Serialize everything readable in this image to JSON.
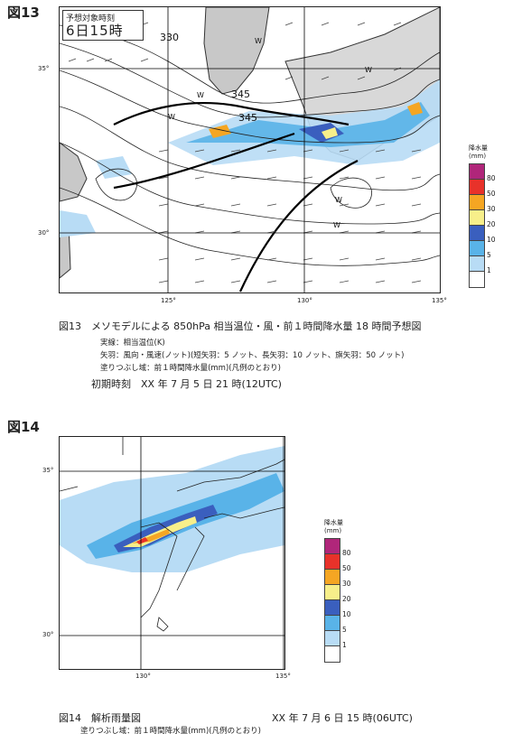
{
  "fig13": {
    "label": "図13",
    "valid_time_label": "予想対象時刻",
    "valid_time": "6日15時",
    "contour_labels": [
      "330",
      "345",
      "345"
    ],
    "wind_marks": [
      "W",
      "W",
      "W",
      "W",
      "W",
      "W"
    ],
    "lat_labels": [
      "35°",
      "30°"
    ],
    "lon_labels": [
      "125°",
      "130°",
      "135°"
    ],
    "caption": "図13　メソモデルによる 850hPa 相当温位・風・前１時間降水量 18 時間予想図",
    "notes": [
      "実線：相当温位(K)",
      "矢羽：風向・風速(ノット)(短矢羽：5 ノット、長矢羽：10 ノット、旗矢羽：50 ノット)",
      "塗りつぶし域：前１時間降水量(mm)(凡例のとおり)"
    ],
    "init_time": "初期時刻　XX 年 7 月 5 日 21 時(12UTC)"
  },
  "fig14": {
    "label": "図14",
    "lat_labels": [
      "35°",
      "30°"
    ],
    "lon_labels": [
      "130°",
      "135°"
    ],
    "caption": "図14　解析雨量図",
    "time": "XX 年 7 月 6 日 15 時(06UTC)",
    "note": "塗りつぶし域：前１時間降水量(mm)(凡例のとおり)"
  },
  "legend": {
    "title_line1": "降水量",
    "title_line2": "(mm)",
    "levels": [
      "80",
      "50",
      "30",
      "20",
      "10",
      "5",
      "1"
    ],
    "colors": [
      "#b0267a",
      "#e8322a",
      "#f5a623",
      "#f7ef8a",
      "#3a5fbe",
      "#59b3e8",
      "#b8dcf5",
      "#ffffff"
    ]
  },
  "colors": {
    "land": "#c8c8c8",
    "rain_light": "#b8dcf5",
    "rain_mid": "#59b3e8"
  }
}
